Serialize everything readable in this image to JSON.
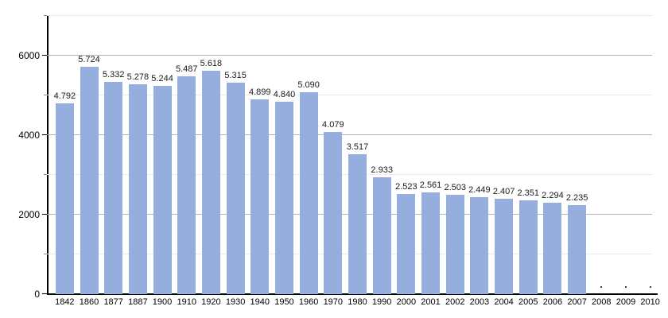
{
  "chart_data": {
    "type": "bar",
    "title": "",
    "xlabel": "",
    "ylabel": "",
    "categories": [
      "1842",
      "1860",
      "1877",
      "1887",
      "1900",
      "1910",
      "1920",
      "1930",
      "1940",
      "1950",
      "1960",
      "1970",
      "1980",
      "1990",
      "2000",
      "2001",
      "2002",
      "2003",
      "2004",
      "2005",
      "2006",
      "2007",
      "2008",
      "2009",
      "2010"
    ],
    "values": [
      4792,
      5724,
      5332,
      5278,
      5244,
      5487,
      5618,
      5315,
      4899,
      4840,
      5090,
      4079,
      3517,
      2933,
      2523,
      2561,
      2503,
      2449,
      2407,
      2351,
      2294,
      2235,
      null,
      null,
      null
    ],
    "value_labels": [
      "4.792",
      "5.724",
      "5.332",
      "5.278",
      "5.244",
      "5.487",
      "5.618",
      "5.315",
      "4.899",
      "4.840",
      "5.090",
      "4.079",
      "3.517",
      "2.933",
      "2.523",
      "2.561",
      "2.503",
      "2.449",
      "2.407",
      "2.351",
      "2.294",
      "2.235",
      "",
      "",
      ""
    ],
    "no_data_categories": [
      "2008",
      "2009",
      "2010"
    ],
    "ylim": [
      0,
      7000
    ],
    "yticks_labeled": [
      0,
      2000,
      4000,
      6000
    ],
    "yticks_minor": [
      1000,
      3000,
      5000,
      7000
    ],
    "grid": true,
    "legend": "none",
    "colors": {
      "bar_fill": "#95aede",
      "major_gridline": "#b2b2b2",
      "minor_gridline": "#e9e9e9",
      "axis": "#000000",
      "label_text": "#1a1a1a",
      "background": "#ffffff"
    }
  }
}
